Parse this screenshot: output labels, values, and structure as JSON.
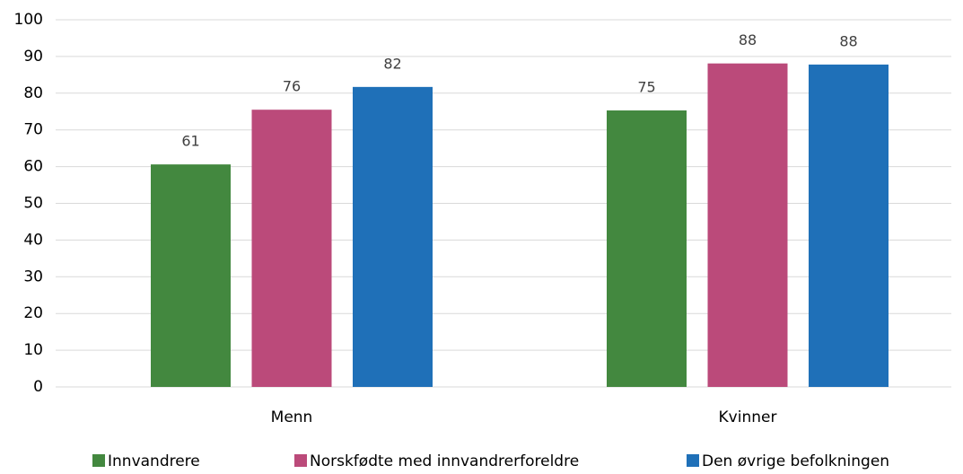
{
  "chart_data": {
    "type": "bar",
    "categories": [
      "Menn",
      "Kvinner"
    ],
    "series": [
      {
        "name": "Innvandrere",
        "color": "#43883f",
        "values": [
          60.6,
          75.3
        ],
        "value_labels": [
          "61",
          "75"
        ]
      },
      {
        "name": "Norskfødte med innvandrerforeldre",
        "color": "#bb4a7a",
        "values": [
          75.5,
          88.1
        ],
        "value_labels": [
          "76",
          "88"
        ]
      },
      {
        "name": "Den øvrige befolkningen",
        "color": "#1f70b8",
        "values": [
          81.7,
          87.8
        ],
        "value_labels": [
          "82",
          "88"
        ]
      }
    ],
    "ylim": [
      0,
      100
    ],
    "yticks": [
      0,
      10,
      20,
      30,
      40,
      50,
      60,
      70,
      80,
      90,
      100
    ],
    "grid": true,
    "legend": "bottom"
  }
}
